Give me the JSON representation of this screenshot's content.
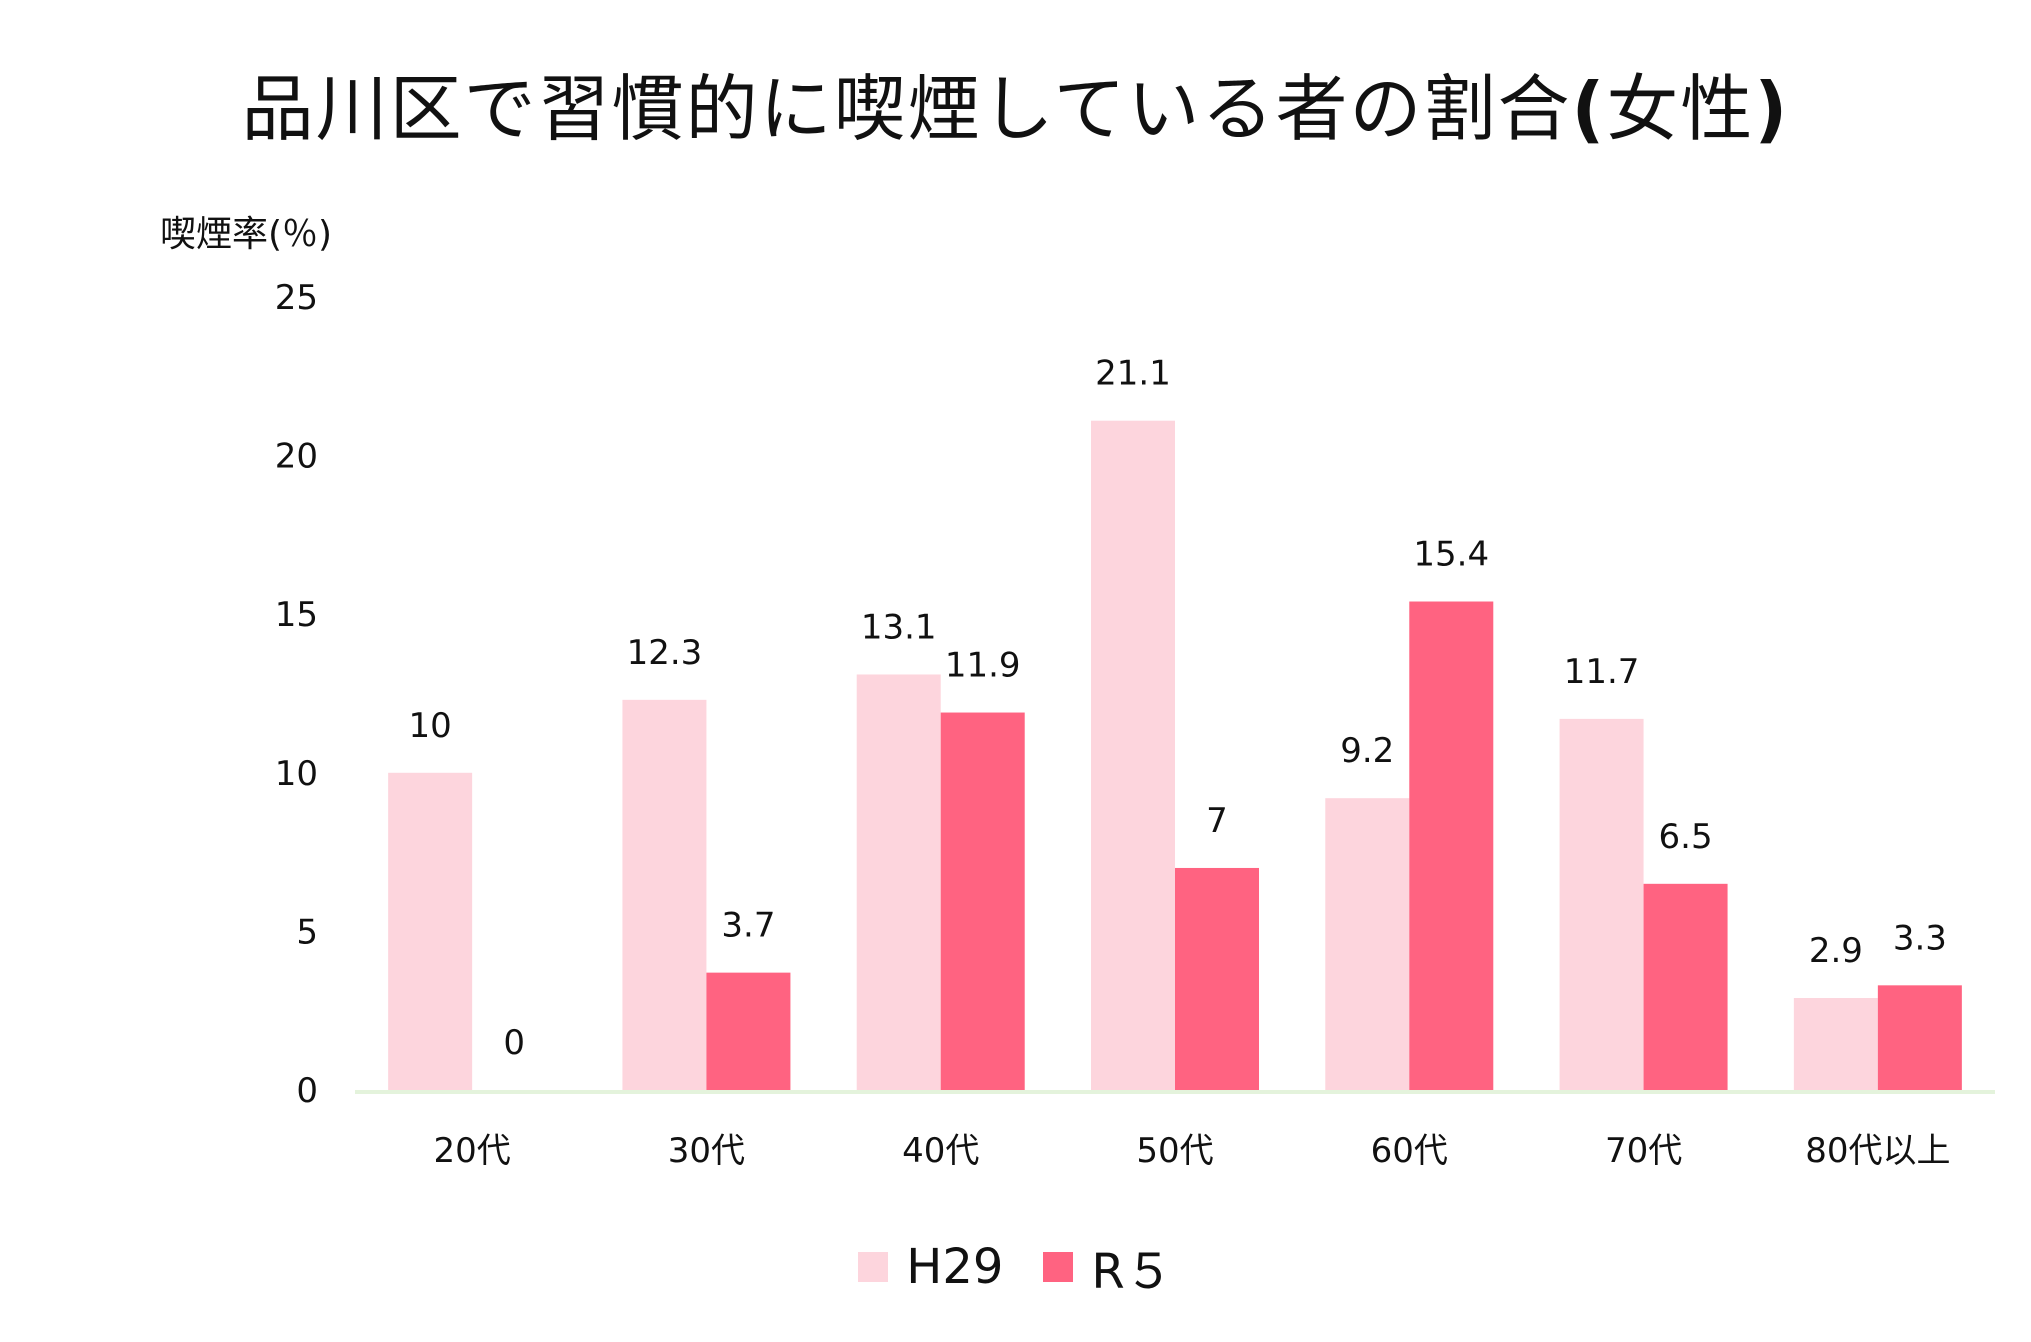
{
  "chart_data": {
    "type": "bar",
    "title": "品川区で習慣的に喫煙している者の割合",
    "title_suffix_open": "(",
    "title_suffix_text": "女性",
    "title_suffix_close": ")",
    "ylabel": "喫煙率(％)",
    "xlabel": "",
    "ylim": [
      0,
      25
    ],
    "yticks": [
      0,
      5,
      10,
      15,
      20,
      25
    ],
    "grid": false,
    "legend_position": "bottom-center",
    "categories": [
      "20代",
      "30代",
      "40代",
      "50代",
      "60代",
      "70代",
      "80代以上"
    ],
    "series": [
      {
        "name": "H29",
        "color": "#fdd5dd",
        "values": [
          10,
          12.3,
          13.1,
          21.1,
          9.2,
          11.7,
          2.9
        ],
        "labels": [
          "10",
          "12.3",
          "13.1",
          "21.1",
          "9.2",
          "11.7",
          "2.9"
        ]
      },
      {
        "name": "R5",
        "color": "#ff6381",
        "values": [
          0,
          3.7,
          11.9,
          7,
          15.4,
          6.5,
          3.3
        ],
        "labels": [
          "0",
          "3.7",
          "11.9",
          "7",
          "15.4",
          "6.5",
          "3.3"
        ]
      }
    ],
    "axis_color": "#e4f3dc"
  },
  "legend": {
    "items": [
      {
        "label": "H29",
        "color": "#fdd5dd"
      },
      {
        "label": "R５",
        "color": "#ff6381"
      }
    ]
  }
}
